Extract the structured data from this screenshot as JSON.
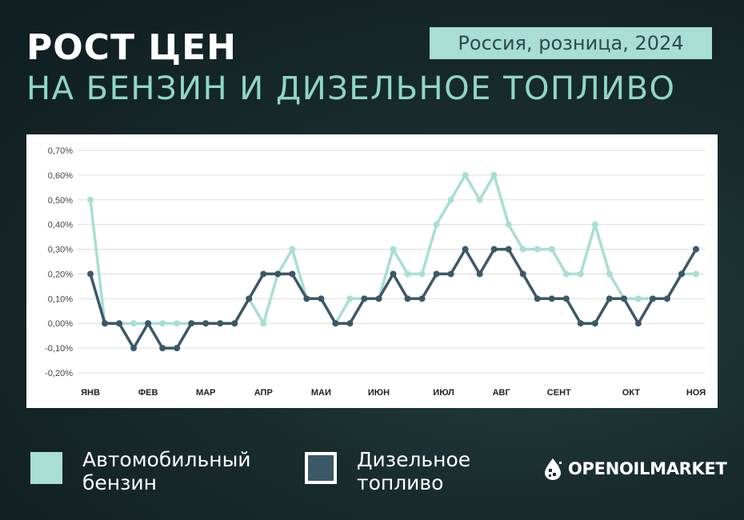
{
  "header": {
    "title": "РОСТ ЦЕН",
    "subtitle": "НА БЕНЗИН И ДИЗЕЛЬНОЕ ТОПЛИВО",
    "badge": "Россия, розница, 2024"
  },
  "legend": {
    "gasoline": "Автомобильный\nбензин",
    "diesel": "Дизельное\nтопливо"
  },
  "logo": {
    "text": "OPENOILMARKET",
    "icon": "oil-drop-icon"
  },
  "colors": {
    "gasoline": "#a8ded3",
    "diesel": "#3b5866",
    "title_accent": "#8fd6c8"
  },
  "chart_data": {
    "type": "line",
    "ylim": [
      -0.2,
      0.7
    ],
    "yticks": [
      -0.2,
      -0.1,
      0.0,
      0.1,
      0.2,
      0.3,
      0.4,
      0.5,
      0.6,
      0.7
    ],
    "ytick_labels": [
      "-0,20%",
      "-0,10%",
      "0,00%",
      "0,10%",
      "0,20%",
      "0,30%",
      "0,40%",
      "0,50%",
      "0,60%",
      "0,70%"
    ],
    "month_labels": [
      "ЯНВ",
      "ФЕВ",
      "МАР",
      "АПР",
      "МАИ",
      "ИЮН",
      "ИЮЛ",
      "АВГ",
      "СЕНТ",
      "ОКТ",
      "НОЯ"
    ],
    "grid": true,
    "point_count": 43,
    "series": [
      {
        "name": "Автомобильный бензин",
        "values": [
          0.5,
          0.0,
          0.0,
          0.0,
          0.0,
          0.0,
          0.0,
          0.0,
          0.0,
          0.0,
          0.0,
          0.1,
          0.0,
          0.2,
          0.3,
          0.1,
          0.1,
          0.0,
          0.1,
          0.1,
          0.1,
          0.3,
          0.2,
          0.2,
          0.4,
          0.5,
          0.6,
          0.5,
          0.6,
          0.4,
          0.3,
          0.3,
          0.3,
          0.2,
          0.2,
          0.4,
          0.2,
          0.1,
          0.1,
          0.1,
          0.1,
          0.2,
          0.2
        ]
      },
      {
        "name": "Дизельное топливо",
        "values": [
          0.2,
          0.0,
          0.0,
          -0.1,
          0.0,
          -0.1,
          -0.1,
          0.0,
          0.0,
          0.0,
          0.0,
          0.1,
          0.2,
          0.2,
          0.2,
          0.1,
          0.1,
          0.0,
          0.0,
          0.1,
          0.1,
          0.2,
          0.1,
          0.1,
          0.2,
          0.2,
          0.3,
          0.2,
          0.3,
          0.3,
          0.2,
          0.1,
          0.1,
          0.1,
          0.0,
          0.0,
          0.1,
          0.1,
          0.0,
          0.1,
          0.1,
          0.2,
          0.3
        ]
      }
    ]
  }
}
